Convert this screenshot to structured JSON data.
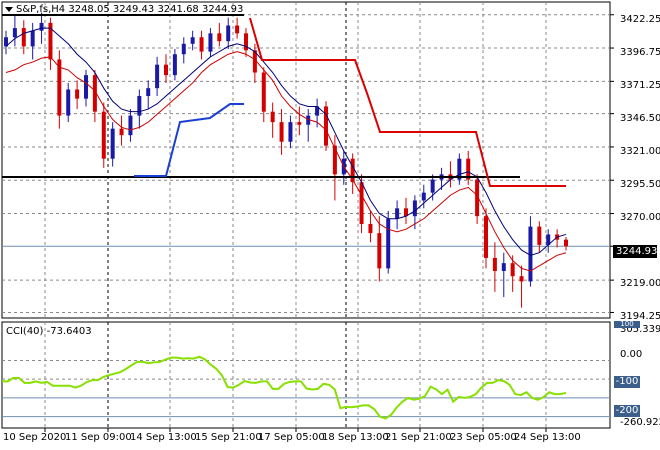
{
  "header": {
    "symbol": "S&P,fs,H4",
    "open": "3248.05",
    "high": "3249.43",
    "low": "3241.68",
    "close": "3244.93"
  },
  "price_axis": {
    "ticks": [
      "3422.25",
      "3396.75",
      "3371.25",
      "3346.50",
      "3321.00",
      "3295.50",
      "3270.00",
      "3244.93",
      "3219.00",
      "3194.25"
    ],
    "tick_values": [
      3422.25,
      3396.75,
      3371.25,
      3346.5,
      3321.0,
      3295.5,
      3270.0,
      3244.93,
      3219.0,
      3194.25
    ],
    "current": "3244.93"
  },
  "indicator": {
    "label": "CCI(40) -73.6403",
    "name": "CCI(40)",
    "value": -73.6403,
    "axis_top": "305.3394",
    "axis_bottom": "-260.9224",
    "levels": [
      "100",
      "0.00",
      "-100",
      "-200"
    ],
    "level_values": [
      100,
      0,
      -100,
      -200
    ],
    "marked_levels": [
      "-100",
      "-200"
    ]
  },
  "time_axis": [
    "10 Sep 2020",
    "11 Sep 09:00",
    "14 Sep 13:00",
    "15 Sep 21:00",
    "17 Sep 05:00",
    "18 Sep 13:00",
    "21 Sep 21:00",
    "23 Sep 05:00",
    "24 Sep 13:00"
  ],
  "colors": {
    "bull": "#1a1aa6",
    "bear": "#d40000",
    "stop_line": "#dd0000",
    "support_line": "#1a3fd6",
    "ma_fast": "#cc0000",
    "ma_slow": "#00007a",
    "cci": "#88e000",
    "horizontal_level": "#000000",
    "grid": "#8a8a8a"
  },
  "chart_data": {
    "type": "candlestick",
    "title": "S&P,fs,H4",
    "ylim": [
      3190,
      3432
    ],
    "x": [
      "10 Sep 2020",
      "11 Sep 09:00",
      "14 Sep 13:00",
      "15 Sep 21:00",
      "17 Sep 05:00",
      "18 Sep 13:00",
      "21 Sep 21:00",
      "23 Sep 05:00",
      "24 Sep 13:00"
    ],
    "candles": [
      [
        3398,
        3410,
        3392,
        3405
      ],
      [
        3405,
        3422,
        3398,
        3412
      ],
      [
        3412,
        3418,
        3392,
        3398
      ],
      [
        3398,
        3416,
        3388,
        3410
      ],
      [
        3410,
        3424,
        3400,
        3416
      ],
      [
        3416,
        3420,
        3380,
        3388
      ],
      [
        3388,
        3395,
        3335,
        3345
      ],
      [
        3345,
        3370,
        3340,
        3365
      ],
      [
        3365,
        3372,
        3350,
        3358
      ],
      [
        3358,
        3380,
        3352,
        3376
      ],
      [
        3376,
        3380,
        3340,
        3348
      ],
      [
        3348,
        3355,
        3305,
        3312
      ],
      [
        3312,
        3340,
        3306,
        3335
      ],
      [
        3335,
        3345,
        3322,
        3330
      ],
      [
        3330,
        3350,
        3325,
        3345
      ],
      [
        3345,
        3365,
        3335,
        3360
      ],
      [
        3360,
        3372,
        3350,
        3366
      ],
      [
        3366,
        3390,
        3360,
        3384
      ],
      [
        3384,
        3392,
        3370,
        3376
      ],
      [
        3376,
        3396,
        3372,
        3392
      ],
      [
        3392,
        3405,
        3385,
        3400
      ],
      [
        3400,
        3410,
        3395,
        3405
      ],
      [
        3405,
        3410,
        3388,
        3394
      ],
      [
        3394,
        3412,
        3390,
        3408
      ],
      [
        3408,
        3416,
        3398,
        3402
      ],
      [
        3402,
        3420,
        3396,
        3414
      ],
      [
        3414,
        3420,
        3404,
        3408
      ],
      [
        3408,
        3412,
        3390,
        3395
      ],
      [
        3395,
        3400,
        3370,
        3378
      ],
      [
        3378,
        3382,
        3340,
        3348
      ],
      [
        3348,
        3355,
        3328,
        3340
      ],
      [
        3340,
        3350,
        3315,
        3325
      ],
      [
        3325,
        3345,
        3320,
        3340
      ],
      [
        3340,
        3352,
        3330,
        3338
      ],
      [
        3338,
        3350,
        3325,
        3345
      ],
      [
        3345,
        3358,
        3336,
        3352
      ],
      [
        3352,
        3356,
        3318,
        3322
      ],
      [
        3322,
        3330,
        3280,
        3300
      ],
      [
        3300,
        3318,
        3292,
        3312
      ],
      [
        3312,
        3316,
        3285,
        3294
      ],
      [
        3294,
        3300,
        3255,
        3262
      ],
      [
        3262,
        3272,
        3248,
        3255
      ],
      [
        3255,
        3268,
        3218,
        3228
      ],
      [
        3228,
        3272,
        3224,
        3266
      ],
      [
        3266,
        3280,
        3258,
        3274
      ],
      [
        3274,
        3282,
        3262,
        3268
      ],
      [
        3268,
        3284,
        3258,
        3280
      ],
      [
        3280,
        3292,
        3274,
        3286
      ],
      [
        3286,
        3300,
        3280,
        3296
      ],
      [
        3296,
        3305,
        3288,
        3300
      ],
      [
        3300,
        3310,
        3290,
        3296
      ],
      [
        3296,
        3316,
        3292,
        3312
      ],
      [
        3312,
        3318,
        3292,
        3296
      ],
      [
        3296,
        3300,
        3262,
        3268
      ],
      [
        3268,
        3274,
        3228,
        3236
      ],
      [
        3236,
        3248,
        3210,
        3226
      ],
      [
        3226,
        3240,
        3206,
        3232
      ],
      [
        3232,
        3238,
        3210,
        3222
      ],
      [
        3222,
        3230,
        3198,
        3218
      ],
      [
        3218,
        3268,
        3214,
        3260
      ],
      [
        3260,
        3264,
        3240,
        3246
      ],
      [
        3246,
        3258,
        3240,
        3254
      ],
      [
        3254,
        3258,
        3244,
        3250
      ],
      [
        3250,
        3252,
        3241.68,
        3244.93
      ]
    ],
    "ma_fast": [
      3378,
      3380,
      3384,
      3386,
      3389,
      3390,
      3382,
      3380,
      3374,
      3370,
      3364,
      3352,
      3342,
      3336,
      3334,
      3336,
      3340,
      3346,
      3352,
      3358,
      3364,
      3370,
      3378,
      3384,
      3388,
      3392,
      3394,
      3392,
      3388,
      3380,
      3372,
      3360,
      3352,
      3346,
      3342,
      3340,
      3334,
      3320,
      3306,
      3296,
      3284,
      3272,
      3262,
      3258,
      3256,
      3258,
      3262,
      3266,
      3272,
      3278,
      3284,
      3288,
      3290,
      3284,
      3270,
      3256,
      3244,
      3234,
      3228,
      3226,
      3230,
      3234,
      3238,
      3240
    ],
    "ma_slow": [
      3398,
      3404,
      3408,
      3410,
      3412,
      3412,
      3406,
      3400,
      3392,
      3386,
      3378,
      3366,
      3356,
      3350,
      3348,
      3348,
      3350,
      3354,
      3360,
      3366,
      3372,
      3378,
      3384,
      3390,
      3394,
      3398,
      3400,
      3398,
      3394,
      3386,
      3378,
      3368,
      3360,
      3354,
      3352,
      3352,
      3346,
      3332,
      3318,
      3306,
      3294,
      3280,
      3270,
      3266,
      3266,
      3268,
      3272,
      3278,
      3284,
      3290,
      3296,
      3300,
      3302,
      3298,
      3286,
      3272,
      3260,
      3250,
      3242,
      3238,
      3240,
      3246,
      3252,
      3254
    ],
    "trailing_stop": [
      [
        0,
        3422
      ],
      [
        1,
        3422
      ],
      [
        2,
        3422
      ],
      [
        3,
        3422
      ],
      [
        4,
        3422
      ],
      [
        5,
        3422
      ],
      [
        6,
        3422
      ],
      [
        7,
        3422
      ],
      [
        8,
        3422
      ],
      [
        9,
        3422
      ],
      [
        10,
        3422
      ],
      [
        11,
        3422
      ],
      [
        12,
        3422
      ],
      [
        13,
        3422
      ],
      [
        14,
        3422
      ],
      [
        15,
        3422
      ],
      [
        16,
        3422
      ],
      [
        17,
        3422
      ],
      [
        18,
        3422
      ],
      [
        19,
        3422
      ],
      [
        20,
        3422
      ],
      [
        21,
        3422
      ],
      [
        22,
        3422
      ],
      [
        23,
        3422
      ],
      [
        24,
        3422
      ],
      [
        25,
        3422
      ],
      [
        26,
        3422
      ],
      [
        27,
        3422
      ],
      [
        28,
        3422
      ],
      [
        29,
        3425
      ],
      [
        30,
        3410
      ],
      [
        31,
        3392
      ],
      [
        32,
        3392
      ],
      [
        33,
        3392
      ],
      [
        34,
        3392
      ],
      [
        35,
        3392
      ],
      [
        36,
        3392
      ],
      [
        37,
        3392
      ],
      [
        38,
        3392
      ],
      [
        39,
        3392
      ],
      [
        40,
        3392
      ],
      [
        41,
        3392
      ],
      [
        42,
        3392
      ],
      [
        43,
        3392
      ],
      [
        44,
        3392
      ],
      [
        45,
        3392
      ],
      [
        46,
        3392
      ],
      [
        47,
        3392
      ],
      [
        48,
        3392
      ],
      [
        49,
        3392
      ],
      [
        50,
        3392
      ],
      [
        51,
        3392
      ],
      [
        52,
        3392
      ],
      [
        53,
        3392
      ]
    ],
    "trailing_stop_upper": [
      [
        41,
        3360
      ],
      [
        42,
        3336
      ],
      [
        43,
        3336
      ],
      [
        44,
        3336
      ],
      [
        45,
        3336
      ],
      [
        46,
        3336
      ],
      [
        47,
        3336
      ],
      [
        48,
        3336
      ],
      [
        49,
        3336
      ],
      [
        50,
        3336
      ],
      [
        51,
        3336
      ],
      [
        52,
        3336
      ],
      [
        53,
        3336
      ],
      [
        54,
        3336
      ],
      [
        55,
        3336
      ],
      [
        56,
        3336
      ],
      [
        57,
        3336
      ],
      [
        58,
        3336
      ],
      [
        59,
        3336
      ],
      [
        60,
        3336
      ],
      [
        61,
        3336
      ],
      [
        62,
        3336
      ],
      [
        63,
        3336
      ],
      [
        64,
        3336
      ],
      [
        65,
        3336
      ],
      [
        66,
        3336
      ],
      [
        67,
        3336
      ],
      [
        68,
        3336
      ],
      [
        69,
        3336
      ],
      [
        70,
        3336
      ],
      [
        71,
        3336
      ],
      [
        72,
        3336
      ],
      [
        73,
        3336
      ],
      [
        74,
        3336
      ],
      [
        75,
        3336
      ],
      [
        76,
        3336
      ],
      [
        77,
        3336
      ],
      [
        78,
        3336
      ],
      [
        79,
        3336
      ],
      [
        80,
        3336
      ],
      [
        81,
        3336
      ],
      [
        82,
        3336
      ],
      [
        83,
        3336
      ],
      [
        84,
        3336
      ],
      [
        85,
        3336
      ],
      [
        86,
        3336
      ],
      [
        87,
        3336
      ],
      [
        88,
        3336
      ],
      [
        89,
        3336
      ],
      [
        90,
        3336
      ],
      [
        91,
        3336
      ],
      [
        92,
        3336
      ],
      [
        93,
        3336
      ],
      [
        94,
        3336
      ],
      [
        95,
        3336
      ],
      [
        96,
        3336
      ],
      [
        97,
        3336
      ],
      [
        98,
        3336
      ],
      [
        99,
        3336
      ]
    ],
    "support": [
      3298,
      3298,
      3298,
      3346,
      3346,
      3362,
      3362,
      3362
    ],
    "hline_1": 3422,
    "hline_2": 3298,
    "cci": [
      -12,
      -12,
      6,
      6,
      -20,
      -20,
      -12,
      -20,
      -15,
      -35,
      -35,
      -35,
      -35,
      -45,
      -35,
      -16,
      -5,
      -5,
      12,
      22,
      30,
      38,
      55,
      75,
      92,
      92,
      85,
      90,
      92,
      105,
      115,
      115,
      110,
      112,
      110,
      120,
      105,
      78,
      55,
      20,
      -42,
      -45,
      -30,
      -10,
      -18,
      -20,
      -12,
      -12,
      -52,
      -52,
      -25,
      -15,
      -12,
      -12,
      -50,
      -55,
      -52,
      -25,
      -30,
      -55,
      -155,
      -148,
      -150,
      -146,
      -140,
      -140,
      -160,
      -200,
      -210,
      -190,
      -150,
      -120,
      -100,
      -110,
      -105,
      -90,
      -40,
      -55,
      -80,
      -56,
      -120,
      -95,
      -100,
      -95,
      -80,
      -45,
      -20,
      -20,
      -5,
      -10,
      -30,
      -80,
      -85,
      -70,
      -100,
      -110,
      -96,
      -70,
      -80,
      -80,
      -73.64
    ],
    "cci_ylim": [
      -260.9224,
      305.3394
    ]
  }
}
